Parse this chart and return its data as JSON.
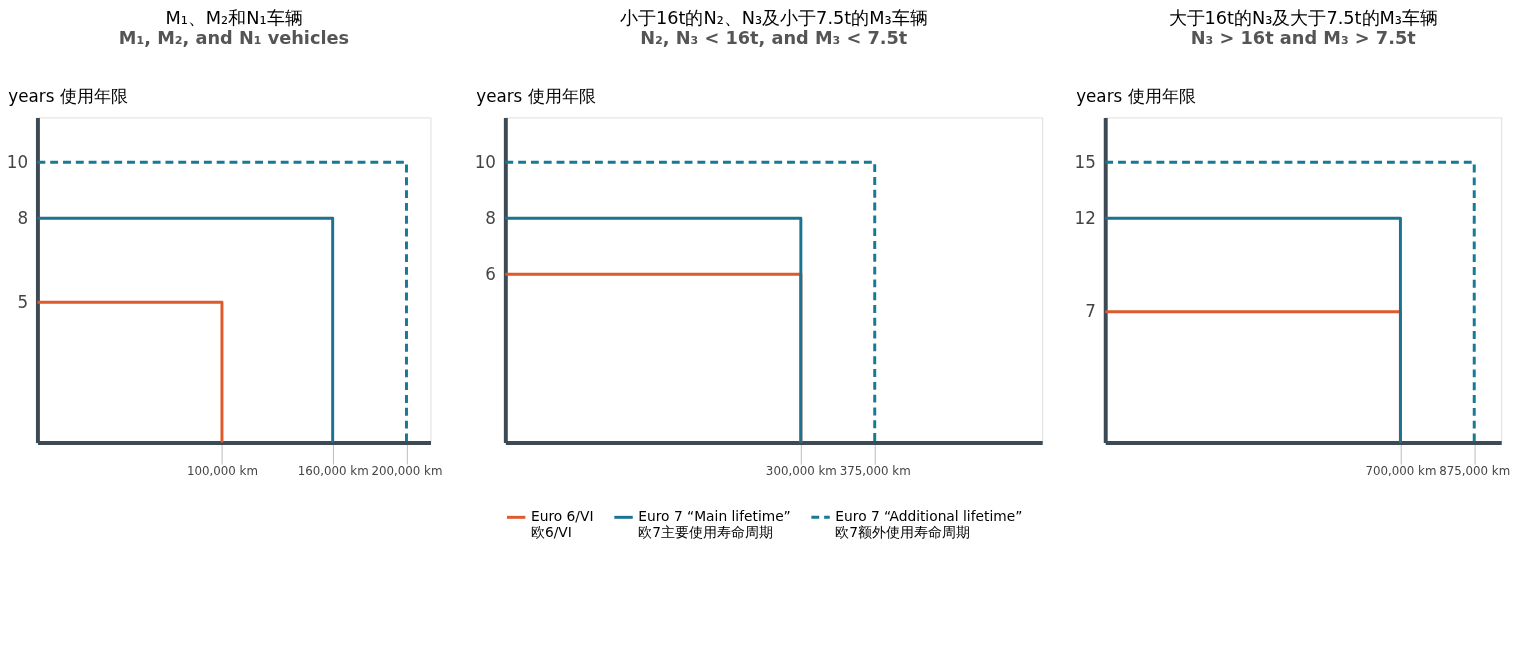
{
  "chart_data": [
    {
      "type": "line",
      "title": "M₁、M₂和N₁车辆",
      "subtitle": "M₁, M₂, and N₁ vehicles",
      "ylabel": "years 使用年限",
      "xlim": [
        0,
        213000
      ],
      "ylim": [
        0,
        11.6
      ],
      "xticks": [
        {
          "value": 100000,
          "label": "100,000 km"
        },
        {
          "value": 160000,
          "label": "160,000 km"
        },
        {
          "value": 200000,
          "label": "200,000 km"
        }
      ],
      "yticks": [
        5,
        8,
        10
      ],
      "grid": false,
      "series": [
        {
          "color": "#dc5a2c",
          "line_style": "solid",
          "x": [
            0,
            100000,
            100000
          ],
          "values": [
            5,
            5,
            0
          ]
        },
        {
          "color": "#1b7391",
          "line_style": "solid",
          "x": [
            0,
            160000,
            160000
          ],
          "values": [
            8,
            8,
            0
          ]
        },
        {
          "color": "#167a95",
          "line_style": "dashed",
          "x": [
            0,
            200000,
            200000
          ],
          "values": [
            10,
            10,
            0
          ]
        }
      ]
    },
    {
      "type": "line",
      "title": "小于16t的N₂、N₃及小于7.5t的M₃车辆",
      "subtitle": "N₂, N₃ < 16t, and M₃ < 7.5t",
      "ylabel": "years 使用年限",
      "xlim": [
        0,
        545000
      ],
      "ylim": [
        0,
        11.6
      ],
      "xticks": [
        {
          "value": 300000,
          "label": "300,000 km"
        },
        {
          "value": 375000,
          "label": "375,000 km"
        }
      ],
      "yticks": [
        6,
        8,
        10
      ],
      "grid": false,
      "legend": "bottom",
      "series": [
        {
          "name": "Euro 6/VI\n欧6/VI",
          "color": "#dc5a2c",
          "line_style": "solid",
          "x": [
            0,
            300000,
            300000
          ],
          "values": [
            6,
            6,
            0
          ]
        },
        {
          "name": "Euro 7 “Main lifetime”\n欧7主要使用寿命周期",
          "color": "#1b7391",
          "line_style": "solid",
          "x": [
            0,
            300000,
            300000
          ],
          "values": [
            8,
            8,
            0
          ]
        },
        {
          "name": "Euro 7 “Additional lifetime”\n欧7额外使用寿命周期",
          "color": "#167a95",
          "line_style": "dashed",
          "x": [
            0,
            375000,
            375000
          ],
          "values": [
            10,
            10,
            0
          ]
        }
      ]
    },
    {
      "type": "line",
      "title": "大于16t的N₃及大于7.5t的M₃车辆",
      "subtitle": "N₃ > 16t and M₃ > 7.5t",
      "ylabel": "years 使用年限",
      "xlim": [
        0,
        939000
      ],
      "ylim": [
        0,
        17.4
      ],
      "xticks": [
        {
          "value": 700000,
          "label": "700,000 km"
        },
        {
          "value": 875000,
          "label": "875,000 km"
        }
      ],
      "yticks": [
        7,
        12,
        15
      ],
      "grid": false,
      "series": [
        {
          "color": "#dc5a2c",
          "line_style": "solid",
          "x": [
            0,
            700000,
            700000
          ],
          "values": [
            7,
            7,
            0
          ]
        },
        {
          "color": "#1b7391",
          "line_style": "solid",
          "x": [
            0,
            700000,
            700000
          ],
          "values": [
            12,
            12,
            0
          ]
        },
        {
          "color": "#167a95",
          "line_style": "dashed",
          "x": [
            0,
            875000,
            875000
          ],
          "values": [
            15,
            15,
            0
          ]
        }
      ]
    }
  ]
}
